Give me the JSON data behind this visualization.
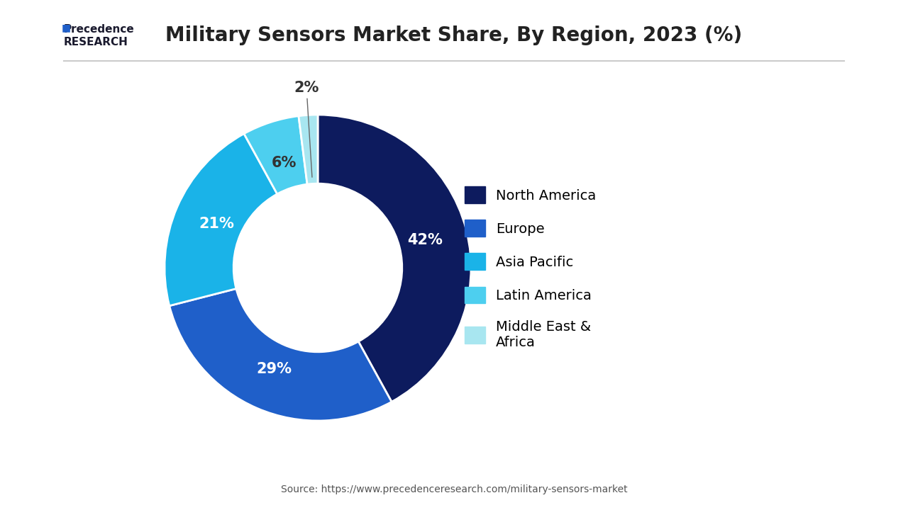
{
  "title": "Military Sensors Market Share, By Region, 2023 (%)",
  "labels": [
    "North America",
    "Europe",
    "Asia Pacific",
    "Latin America",
    "Middle East &\nAfrica"
  ],
  "values": [
    42,
    29,
    21,
    6,
    2
  ],
  "colors": [
    "#0d1b5e",
    "#1f5fc9",
    "#1ab3e8",
    "#4dcfef",
    "#a8e6f0"
  ],
  "pct_labels": [
    "42%",
    "29%",
    "21%",
    "6%",
    "2%"
  ],
  "source_text": "Source: https://www.precedenceresearch.com/military-sensors-market",
  "background_color": "#ffffff",
  "legend_labels": [
    "North America",
    "Europe",
    "Asia Pacific",
    "Latin America",
    "Middle East &\n  Africa"
  ],
  "title_fontsize": 20,
  "legend_fontsize": 14,
  "pct_fontsize": 15
}
